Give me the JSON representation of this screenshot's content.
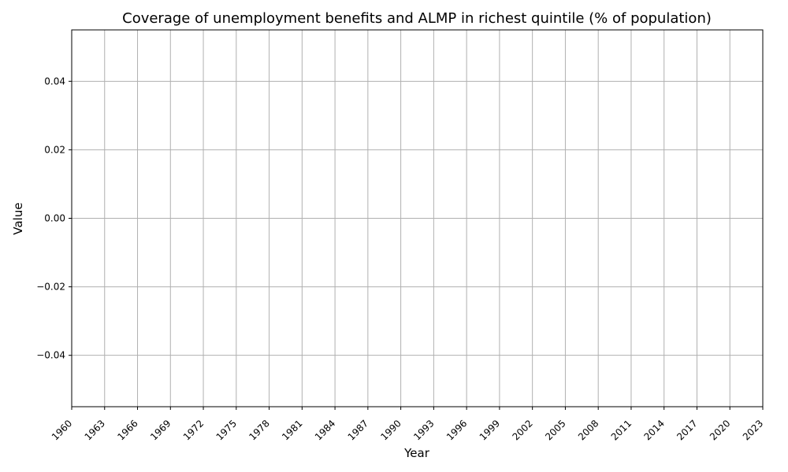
{
  "chart_data": {
    "type": "line",
    "title": "Coverage of unemployment benefits and ALMP in richest quintile (% of population)",
    "xlabel": "Year",
    "ylabel": "Value",
    "xlim": [
      1960,
      2023
    ],
    "ylim": [
      -0.055,
      0.055
    ],
    "x_ticks": [
      "1960",
      "1963",
      "1966",
      "1969",
      "1972",
      "1975",
      "1978",
      "1981",
      "1984",
      "1987",
      "1990",
      "1993",
      "1996",
      "1999",
      "2002",
      "2005",
      "2008",
      "2011",
      "2014",
      "2017",
      "2020",
      "2023"
    ],
    "y_ticks": [
      "−0.04",
      "−0.02",
      "0.00",
      "0.02",
      "0.04"
    ],
    "y_tick_values": [
      -0.04,
      -0.02,
      0.0,
      0.02,
      0.04
    ],
    "grid": true,
    "series": [
      {
        "values": []
      }
    ],
    "colors": {
      "grid": "#b0b0b0",
      "axes": "#000000",
      "line": "#1f77b4"
    }
  }
}
